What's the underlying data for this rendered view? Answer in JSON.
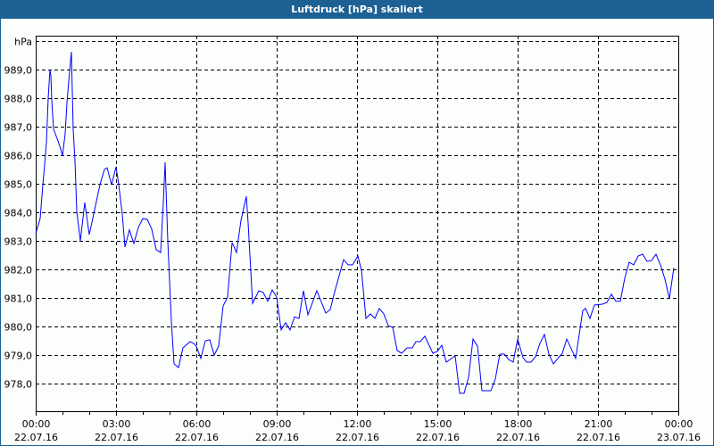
{
  "window": {
    "title": "Luftdruck [hPa] skaliert"
  },
  "chart_data": {
    "type": "line",
    "title": "Luftdruck [hPa] skaliert",
    "ylabel": "hPa",
    "ylim": [
      977.1,
      990.2
    ],
    "y_ticks": [
      978,
      979,
      980,
      981,
      982,
      983,
      984,
      985,
      986,
      987,
      988,
      989
    ],
    "y_tick_labels": [
      "978,0",
      "979,0",
      "980,0",
      "981,0",
      "982,0",
      "983,0",
      "984,0",
      "985,0",
      "986,0",
      "987,0",
      "988,0",
      "989,0"
    ],
    "x_ticks": [
      {
        "time": "00:00",
        "date": "22.07.16"
      },
      {
        "time": "03:00",
        "date": "22.07.16"
      },
      {
        "time": "06:00",
        "date": "22.07.16"
      },
      {
        "time": "09:00",
        "date": "22.07.16"
      },
      {
        "time": "12:00",
        "date": "22.07.16"
      },
      {
        "time": "15:00",
        "date": "22.07.16"
      },
      {
        "time": "18:00",
        "date": "22.07.16"
      },
      {
        "time": "21:00",
        "date": "22.07.16"
      },
      {
        "time": "00:00",
        "date": "23.07.16"
      }
    ],
    "xlim": [
      "22.07.16 00:00",
      "23.07.16 00:00"
    ],
    "grid": true,
    "grid_style": "dashed",
    "line_color": "#0000ff",
    "date": "22.07.16",
    "times": [
      "00:00",
      "00:10",
      "00:16",
      "00:20",
      "00:24",
      "00:28",
      "00:32",
      "00:34",
      "00:36",
      "00:40",
      "00:44",
      "00:50",
      "00:56",
      "01:00",
      "01:06",
      "01:10",
      "01:16",
      "01:20",
      "01:24",
      "01:28",
      "01:32",
      "01:40",
      "01:50",
      "02:00",
      "02:10",
      "02:24",
      "02:34",
      "02:40",
      "02:50",
      "03:00",
      "03:06",
      "03:14",
      "03:20",
      "03:30",
      "03:40",
      "03:50",
      "04:00",
      "04:10",
      "04:20",
      "04:30",
      "04:40",
      "04:46",
      "04:50",
      "04:56",
      "05:04",
      "05:10",
      "05:20",
      "05:30",
      "05:46",
      "05:54",
      "06:00",
      "06:10",
      "06:20",
      "06:30",
      "06:40",
      "06:50",
      "07:00",
      "07:10",
      "07:20",
      "07:30",
      "07:40",
      "07:52",
      "07:56",
      "08:06",
      "08:20",
      "08:30",
      "08:40",
      "08:50",
      "09:00",
      "09:10",
      "09:20",
      "09:30",
      "09:40",
      "09:50",
      "10:00",
      "10:10",
      "10:30",
      "10:50",
      "11:00",
      "11:10",
      "11:20",
      "11:30",
      "11:40",
      "11:50",
      "12:02",
      "12:10",
      "12:20",
      "12:30",
      "12:40",
      "12:50",
      "13:00",
      "13:10",
      "13:20",
      "13:30",
      "13:40",
      "13:52",
      "14:04",
      "14:12",
      "14:22",
      "14:32",
      "14:50",
      "15:00",
      "15:10",
      "15:20",
      "15:40",
      "15:50",
      "16:00",
      "16:10",
      "16:20",
      "16:30",
      "16:40",
      "17:00",
      "17:10",
      "17:20",
      "17:30",
      "17:40",
      "17:50",
      "18:00",
      "18:12",
      "18:20",
      "18:30",
      "18:40",
      "18:50",
      "19:00",
      "19:10",
      "19:20",
      "19:30",
      "19:40",
      "19:50",
      "20:10",
      "20:26",
      "20:32",
      "20:42",
      "20:52",
      "21:10",
      "21:20",
      "21:30",
      "21:40",
      "21:50",
      "22:00",
      "22:10",
      "22:20",
      "22:30",
      "22:40",
      "22:50",
      "23:00",
      "23:10",
      "23:20",
      "23:30",
      "23:40",
      "23:50"
    ],
    "values": [
      983.25,
      983.78,
      984.97,
      985.66,
      986.44,
      988.0,
      989.0,
      988.78,
      987.94,
      986.91,
      986.75,
      986.5,
      986.22,
      985.97,
      986.75,
      987.84,
      988.94,
      989.62,
      986.91,
      985.81,
      984.03,
      983.0,
      984.34,
      983.22,
      983.94,
      984.97,
      985.5,
      985.56,
      984.97,
      985.59,
      984.97,
      983.94,
      982.78,
      983.38,
      982.91,
      983.47,
      983.78,
      983.75,
      983.41,
      982.69,
      982.59,
      984.34,
      985.75,
      983.0,
      980.19,
      978.69,
      978.56,
      979.25,
      979.47,
      979.41,
      979.31,
      978.88,
      979.5,
      979.53,
      979.0,
      979.31,
      980.72,
      981.03,
      982.94,
      982.59,
      983.72,
      984.56,
      983.63,
      980.81,
      981.25,
      981.19,
      980.88,
      981.28,
      981.03,
      979.88,
      980.13,
      979.88,
      980.34,
      980.28,
      981.25,
      980.41,
      981.25,
      980.47,
      980.59,
      981.22,
      981.78,
      982.34,
      982.16,
      982.16,
      982.47,
      981.97,
      980.28,
      980.44,
      980.28,
      980.63,
      980.44,
      980.03,
      979.97,
      979.16,
      979.06,
      979.25,
      979.25,
      979.47,
      979.47,
      979.66,
      979.06,
      979.13,
      979.34,
      978.75,
      978.97,
      977.66,
      977.66,
      978.22,
      979.56,
      979.31,
      977.75,
      977.75,
      978.16,
      979.03,
      979.03,
      978.84,
      978.75,
      979.56,
      978.91,
      978.75,
      978.75,
      978.94,
      979.41,
      979.72,
      979.03,
      978.69,
      978.88,
      979.06,
      979.56,
      978.88,
      980.56,
      980.63,
      980.28,
      980.75,
      980.78,
      980.84,
      981.13,
      980.88,
      980.88,
      981.69,
      982.25,
      982.16,
      982.47,
      982.53,
      982.28,
      982.31,
      982.53,
      982.16,
      981.66,
      980.97,
      982.06
    ]
  }
}
